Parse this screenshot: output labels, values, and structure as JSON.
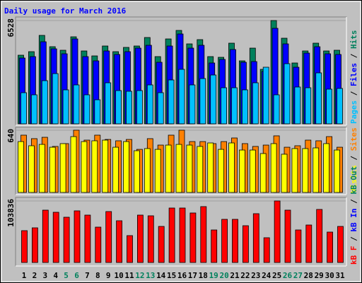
{
  "chart_data": [
    {
      "type": "bar",
      "title": "Daily usage for March 2016",
      "ylim": [
        0,
        6528
      ],
      "yticks": [
        6528
      ],
      "legend_separator": " / ",
      "series": [
        {
          "name": "Hits",
          "color": "#00805c",
          "values": [
            4337,
            4560,
            5589,
            4874,
            4650,
            5499,
            4605,
            4292,
            4918,
            4560,
            4829,
            4918,
            5455,
            4248,
            5365,
            5902,
            5052,
            5321,
            4248,
            4203,
            5097,
            3979,
            4784,
            3443,
            6528,
            5410,
            3845,
            4605,
            5097,
            4605,
            4650
          ]
        },
        {
          "name": "Files",
          "color": "#0000ff",
          "values": [
            4158,
            4247,
            5186,
            4739,
            4426,
            5365,
            4247,
            3979,
            4605,
            4382,
            4560,
            4784,
            4963,
            3890,
            4918,
            5678,
            4784,
            4963,
            3845,
            4069,
            4695,
            3890,
            3934,
            3309,
            6036,
            5052,
            3577,
            4471,
            4873,
            4426,
            4382
          ]
        },
        {
          "name": "Pages",
          "color": "#00c0ff",
          "values": [
            1967,
            1833,
            2727,
            3174,
            2146,
            2459,
            1833,
            1520,
            2593,
            2101,
            2057,
            2101,
            2459,
            1967,
            2772,
            3443,
            2459,
            2861,
            3085,
            2280,
            2280,
            2146,
            2593,
            3577,
            1833,
            3800,
            2325,
            2280,
            3219,
            2191,
            2236
          ]
        }
      ]
    },
    {
      "type": "bar",
      "ylim": [
        0,
        640
      ],
      "yticks": [
        640
      ],
      "legend_separator": " / ",
      "series": [
        {
          "name": "Sites",
          "color": "#ff8000",
          "values": [
            589,
            553,
            567,
            473,
            502,
            640,
            538,
            589,
            545,
            531,
            545,
            443,
            553,
            487,
            589,
            640,
            523,
            523,
            502,
            523,
            560,
            502,
            473,
            487,
            582,
            465,
            480,
            538,
            531,
            574,
            465
          ]
        },
        {
          "name": "Visits",
          "color": "#ffff00",
          "values": [
            523,
            480,
            494,
            465,
            502,
            574,
            523,
            531,
            538,
            465,
            523,
            429,
            451,
            443,
            487,
            494,
            487,
            473,
            509,
            443,
            509,
            436,
            436,
            400,
            502,
            393,
            451,
            451,
            458,
            502,
            436
          ]
        }
      ]
    },
    {
      "type": "bar",
      "ylim": [
        0,
        103836
      ],
      "yticks": [
        103836
      ],
      "legend_separator": " / ",
      "categories": [
        "1",
        "2",
        "3",
        "4",
        "5",
        "6",
        "7",
        "8",
        "9",
        "10",
        "11",
        "12",
        "13",
        "14",
        "15",
        "16",
        "17",
        "18",
        "19",
        "20",
        "21",
        "22",
        "23",
        "24",
        "25",
        "26",
        "27",
        "28",
        "29",
        "30",
        "31"
      ],
      "category_colors": [
        "#000000",
        "#000000",
        "#000000",
        "#000000",
        "#00805c",
        "#00805c",
        "#000000",
        "#000000",
        "#000000",
        "#000000",
        "#000000",
        "#00805c",
        "#00805c",
        "#000000",
        "#000000",
        "#000000",
        "#000000",
        "#000000",
        "#00805c",
        "#00805c",
        "#000000",
        "#000000",
        "#000000",
        "#000000",
        "#000000",
        "#00805c",
        "#00805c",
        "#000000",
        "#000000",
        "#000000",
        "#000000"
      ],
      "series": [
        {
          "name": "kB Out",
          "color": "#00805c"
        },
        {
          "name": "kB In",
          "color": "#0000ff"
        },
        {
          "name": "kB F",
          "color": "#ff0000",
          "values": [
            53708,
            58482,
            88319,
            84739,
            76384,
            87126,
            79965,
            59675,
            85932,
            70417,
            45353,
            79965,
            78771,
            60869,
            91900,
            91900,
            83545,
            94287,
            54901,
            72804,
            72804,
            62062,
            82352,
            41773,
            103836,
            88319,
            54901,
            63256,
            89513,
            51321,
            60869
          ]
        }
      ]
    }
  ]
}
